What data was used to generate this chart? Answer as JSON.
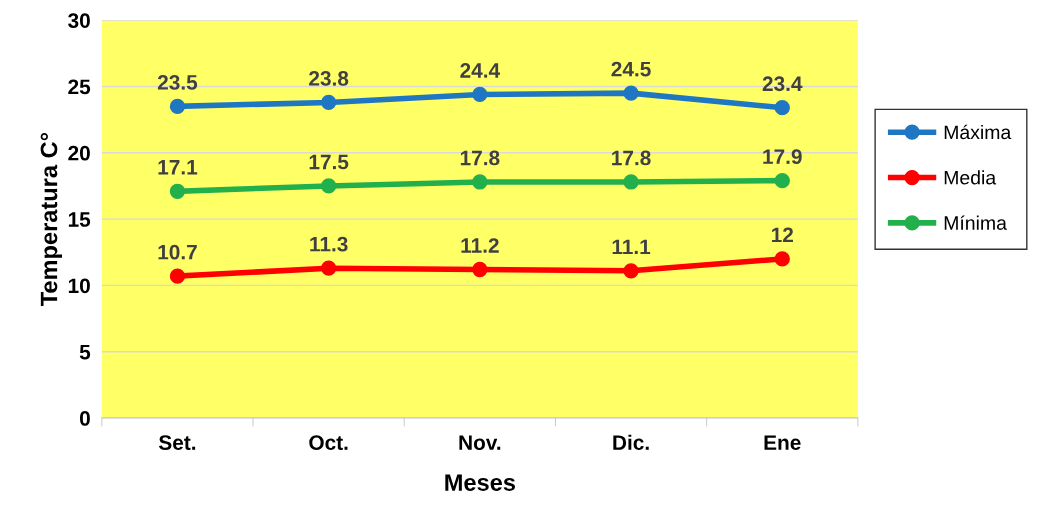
{
  "chart_data": {
    "type": "line",
    "xlabel": "Meses",
    "ylabel": "Temperatura C°",
    "categories": [
      "Set.",
      "Oct.",
      "Nov.",
      "Dic.",
      "Ene"
    ],
    "series": [
      {
        "name": "Máxima",
        "color": "#1f77c4",
        "values": [
          23.5,
          23.8,
          24.4,
          24.5,
          23.4
        ]
      },
      {
        "name": "Media",
        "color": "#ff0000",
        "values": [
          10.7,
          11.3,
          11.2,
          11.1,
          12
        ]
      },
      {
        "name": "Mínima",
        "color": "#22b04c",
        "values": [
          17.1,
          17.5,
          17.8,
          17.8,
          17.9
        ]
      }
    ],
    "ylim": [
      0,
      30
    ],
    "yticks": [
      0,
      5,
      10,
      15,
      20,
      25,
      30
    ],
    "grid": "y",
    "legend": "right",
    "marker": "circle",
    "line_style": "solid",
    "data_labels": true
  }
}
